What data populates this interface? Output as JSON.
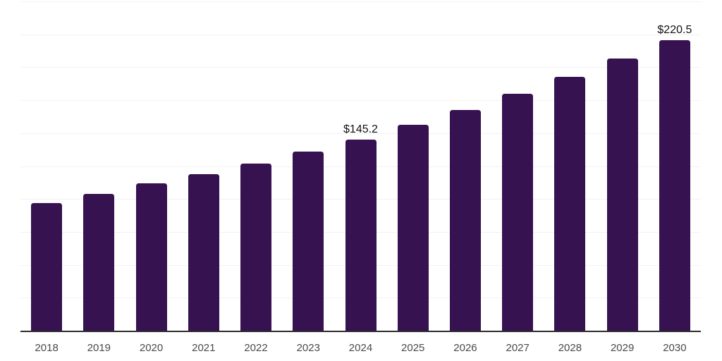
{
  "chart_data": {
    "type": "bar",
    "title": "",
    "xlabel": "",
    "ylabel": "",
    "categories": [
      "2018",
      "2019",
      "2020",
      "2021",
      "2022",
      "2023",
      "2024",
      "2025",
      "2026",
      "2027",
      "2028",
      "2029",
      "2030"
    ],
    "values": [
      97.0,
      103.9,
      111.8,
      118.9,
      126.9,
      135.9,
      145.2,
      156.1,
      167.7,
      179.8,
      192.7,
      206.5,
      220.5
    ],
    "data_labels": {
      "2024": "$145.2",
      "2030": "$220.5"
    },
    "value_prefix": "$",
    "ylim": [
      0,
      250
    ],
    "grid_step": 25,
    "grid": true,
    "legend": false,
    "y_tick_labels_shown": false,
    "colors": {
      "bar": "#371250",
      "grid": "#f2f2f2",
      "axis": "#2b2b2b",
      "tick_label": "#4a4a4a",
      "data_label": "#111111",
      "background": "#ffffff"
    }
  }
}
